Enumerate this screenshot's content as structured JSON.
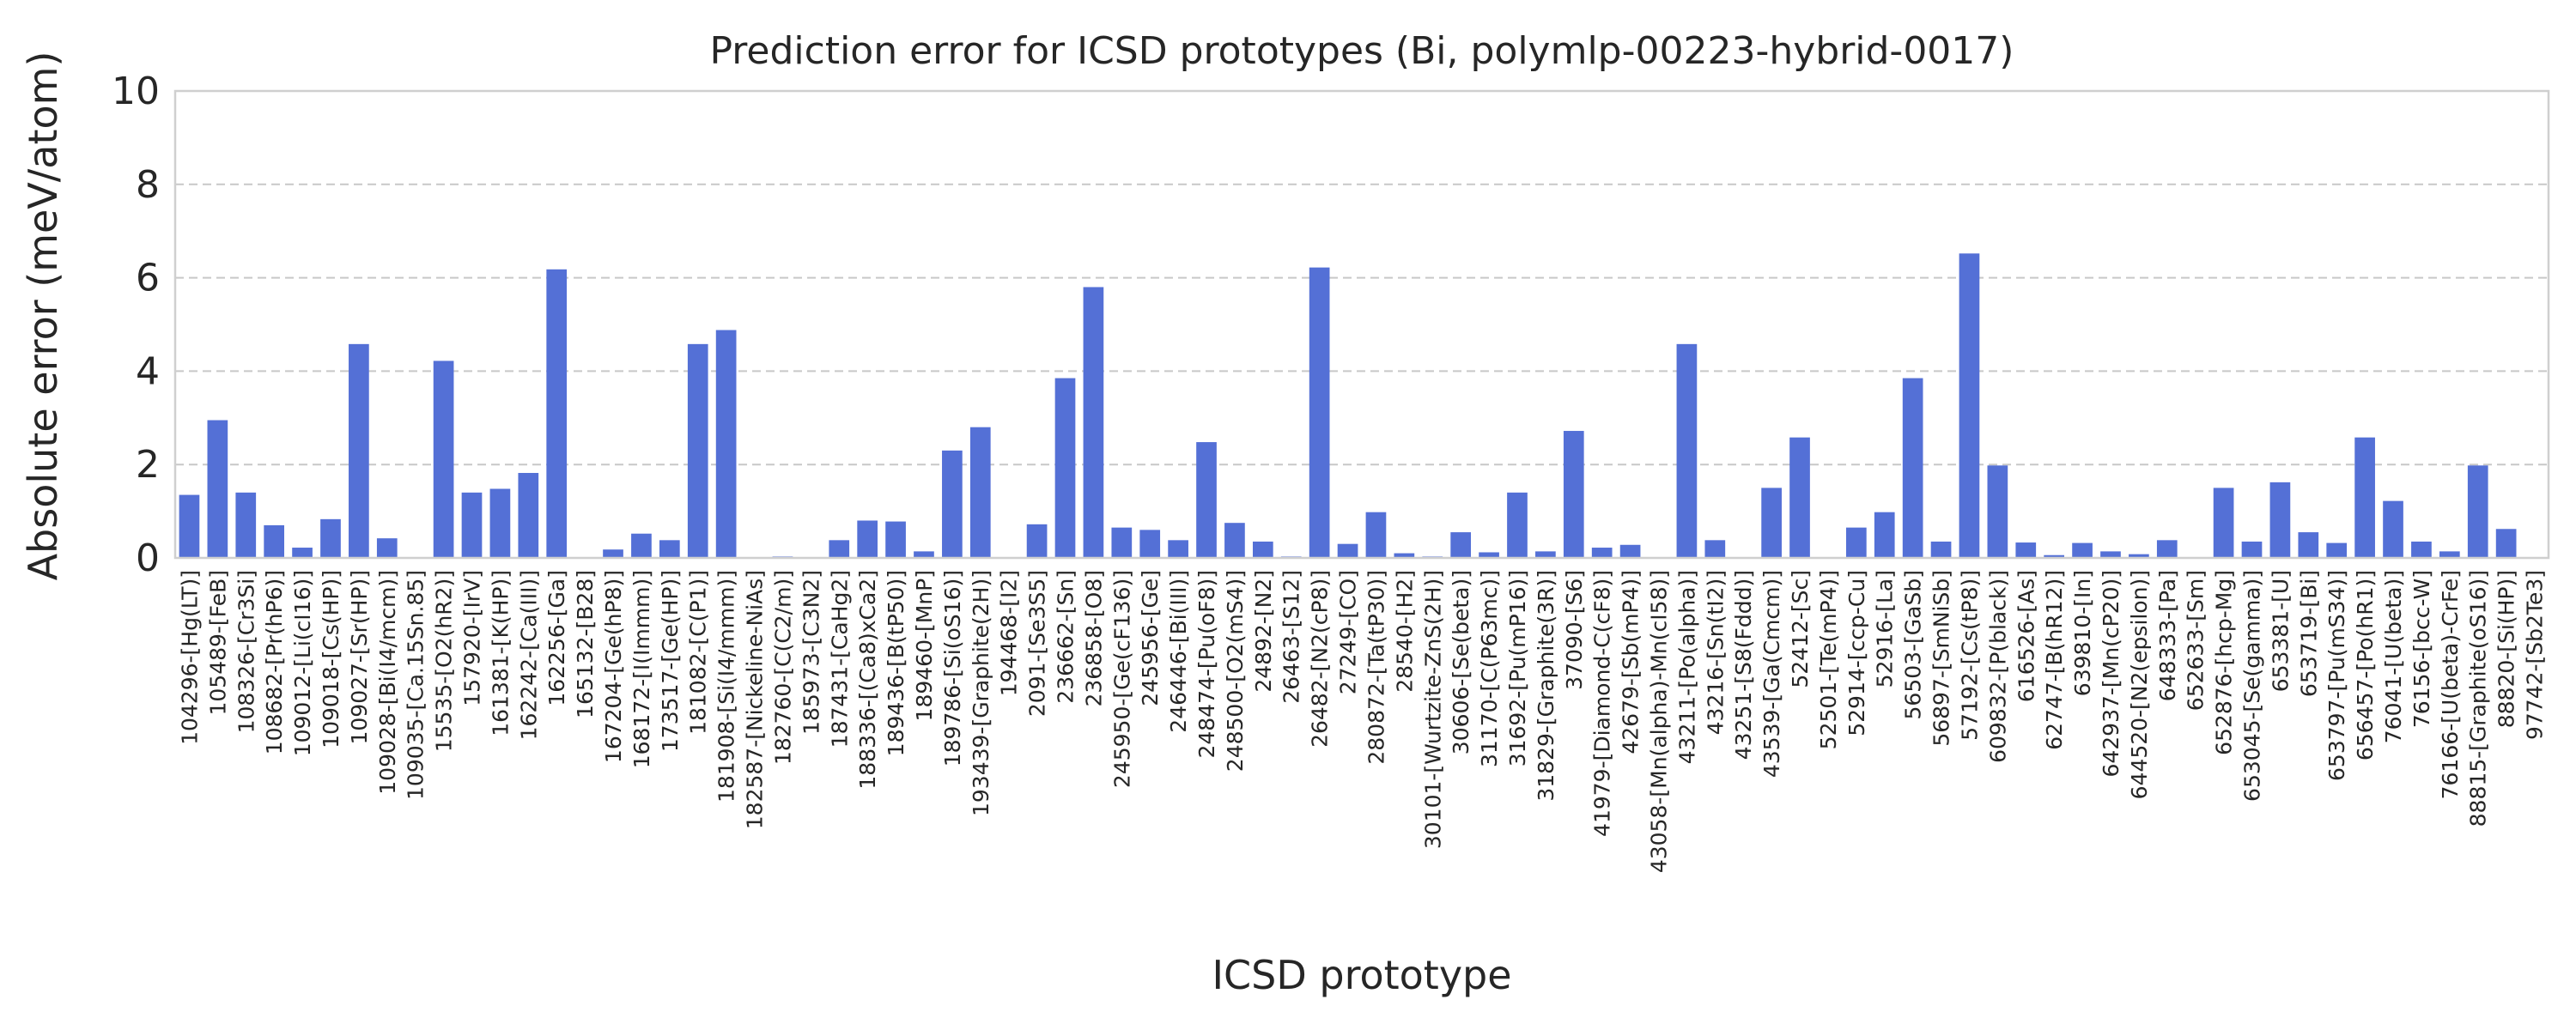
{
  "chart_data": {
    "type": "bar",
    "title": "Prediction error for ICSD prototypes (Bi, polymlp-00223-hybrid-0017)",
    "xlabel": "ICSD prototype",
    "ylabel": "Absolute error (meV/atom)",
    "ylim": [
      0,
      10
    ],
    "yticks": [
      0,
      2,
      4,
      6,
      8,
      10
    ],
    "grid": "y",
    "bar_color": "#5470d6",
    "categories": [
      "104296-[Hg(LT)]",
      "105489-[FeB]",
      "108326-[Cr3Si]",
      "108682-[Pr(hP6)]",
      "109012-[Li(cI16)]",
      "109018-[Cs(HP)]",
      "109027-[Sr(HP)]",
      "109028-[Bi(I4/mcm)]",
      "109035-[Ca.15Sn.85]",
      "15535-[O2(hR2)]",
      "157920-[IrV]",
      "161381-[K(HP)]",
      "162242-[Ca(III)]",
      "162256-[Ga]",
      "165132-[B28]",
      "167204-[Ge(hP8)]",
      "168172-[I(Immm)]",
      "173517-[Ge(HP)]",
      "181082-[C(P1)]",
      "181908-[Si(I4/mmm)]",
      "182587-[Nickeline-NiAs]",
      "182760-[C(C2/m)]",
      "185973-[C3N2]",
      "187431-[CaHg2]",
      "188336-[(Ca8)xCa2]",
      "189436-[B(tP50)]",
      "189460-[MnP]",
      "189786-[Si(oS16)]",
      "193439-[Graphite(2H)]",
      "194468-[I2]",
      "2091-[Se3S5]",
      "236662-[Sn]",
      "236858-[O8]",
      "245950-[Ge(cF136)]",
      "245956-[Ge]",
      "246446-[Bi(III)]",
      "248474-[Pu(oF8)]",
      "248500-[O2(mS4)]",
      "24892-[N2]",
      "26463-[S12]",
      "26482-[N2(cP8)]",
      "27249-[CO]",
      "280872-[Ta(tP30)]",
      "28540-[H2]",
      "30101-[Wurtzite-ZnS(2H)]",
      "30606-[Se(beta)]",
      "31170-[C(P63mc)]",
      "31692-[Pu(mP16)]",
      "31829-[Graphite(3R)]",
      "37090-[S6]",
      "41979-[Diamond-C(cF8)]",
      "42679-[Sb(mP4)]",
      "43058-[Mn(alpha)-Mn(cI58)]",
      "43211-[Po(alpha)]",
      "43216-[Sn(tI2)]",
      "43251-[S8(Fddd)]",
      "43539-[Ga(Cmcm)]",
      "52412-[Sc]",
      "52501-[Te(mP4)]",
      "52914-[ccp-Cu]",
      "52916-[La]",
      "56503-[GaSb]",
      "56897-[SmNiSb]",
      "57192-[Cs(tP8)]",
      "609832-[P(black)]",
      "616526-[As]",
      "62747-[B(hR12)]",
      "639810-[In]",
      "642937-[Mn(cP20)]",
      "644520-[N2(epsilon)]",
      "648333-[Pa]",
      "652633-[Sm]",
      "652876-[hcp-Mg]",
      "653045-[Se(gamma)]",
      "653381-[U]",
      "653719-[Bi]",
      "653797-[Pu(mS34)]",
      "656457-[Po(hR1)]",
      "76041-[U(beta)]",
      "76156-[bcc-W]",
      "76166-[U(beta)-CrFe]",
      "88815-[Graphite(oS16)]",
      "88820-[Si(HP)]",
      "97742-[Sb2Te3]"
    ],
    "values": [
      1.35,
      2.95,
      1.4,
      0.7,
      0.22,
      0.83,
      4.58,
      0.42,
      0.0,
      4.22,
      1.4,
      1.48,
      1.82,
      6.18,
      0.0,
      0.18,
      0.52,
      0.38,
      4.58,
      4.88,
      0.0,
      0.03,
      0.0,
      0.38,
      0.8,
      0.78,
      0.14,
      2.3,
      2.8,
      0.0,
      0.72,
      3.85,
      5.8,
      0.65,
      0.6,
      0.38,
      2.48,
      0.75,
      0.35,
      0.03,
      6.22,
      0.3,
      0.98,
      0.1,
      0.03,
      0.55,
      0.12,
      1.4,
      0.14,
      2.72,
      0.22,
      0.28,
      0.0,
      4.58,
      0.38,
      0.0,
      1.5,
      2.58,
      0.0,
      0.65,
      0.98,
      3.85,
      0.35,
      6.52,
      1.98,
      0.33,
      0.06,
      0.32,
      0.14,
      0.08,
      0.38,
      0.0,
      1.5,
      0.35,
      1.62,
      0.55,
      0.32,
      2.58,
      1.22,
      0.35,
      0.14,
      1.98,
      0.62,
      0.0
    ]
  }
}
